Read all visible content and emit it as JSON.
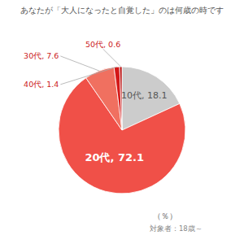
{
  "chart_data": {
    "type": "pie",
    "title": "あなたが「大人になったと自覚した」のは何歳の時です",
    "values": [
      18.1,
      72.1,
      7.6,
      1.4,
      0.6
    ],
    "value_labels": [
      "10代, 18.1",
      "20代, 72.1",
      "30代, 7.6",
      "40代, 1.4",
      "50代, 0.6"
    ],
    "colors": [
      "#cccccc",
      "#f05048",
      "#f07060",
      "#d41818",
      "#b80808"
    ],
    "data_labels": true,
    "annotations": [
      "（％）",
      "対象者：18歳～"
    ]
  }
}
